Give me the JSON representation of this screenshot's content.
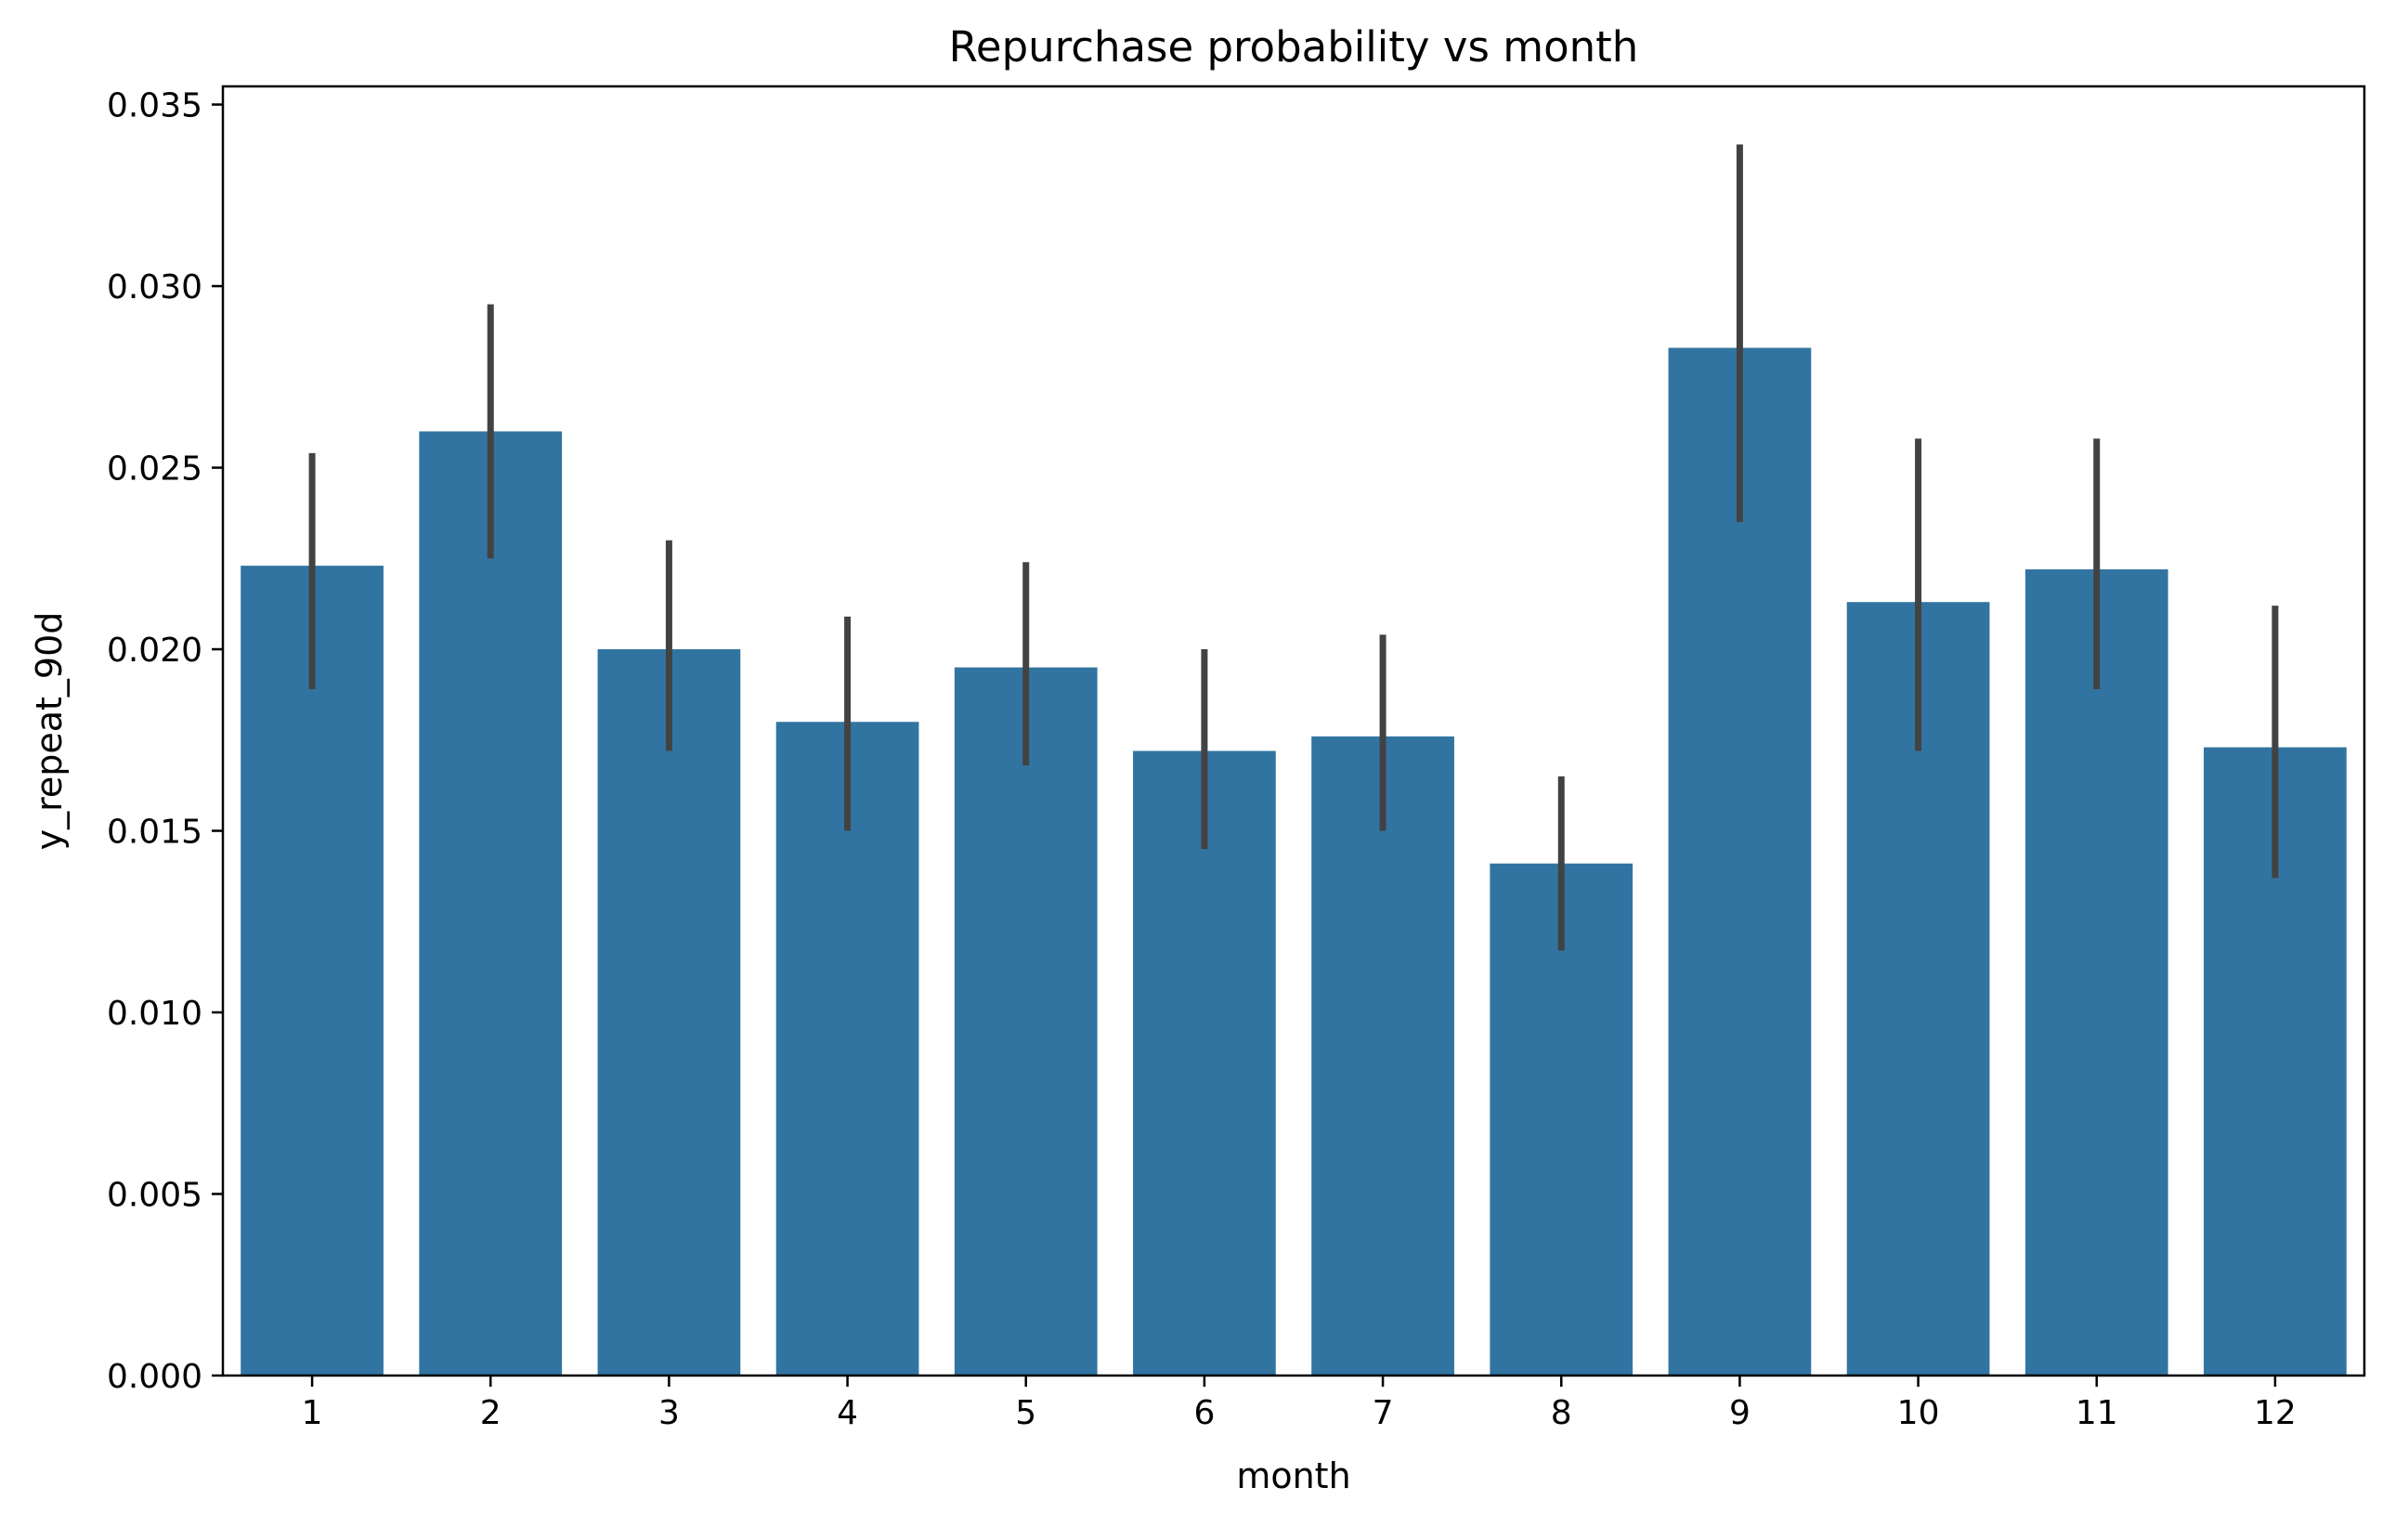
{
  "chart_data": {
    "type": "bar",
    "title": "Repurchase probability vs month",
    "xlabel": "month",
    "ylabel": "y_repeat_90d",
    "categories": [
      "1",
      "2",
      "3",
      "4",
      "5",
      "6",
      "7",
      "8",
      "9",
      "10",
      "11",
      "12"
    ],
    "values": [
      0.0223,
      0.026,
      0.02,
      0.018,
      0.0195,
      0.0172,
      0.0176,
      0.0141,
      0.0283,
      0.0213,
      0.0222,
      0.0173
    ],
    "error_low": [
      0.0189,
      0.0225,
      0.0172,
      0.015,
      0.0168,
      0.0145,
      0.015,
      0.0117,
      0.0235,
      0.0172,
      0.0189,
      0.0137
    ],
    "error_high": [
      0.0254,
      0.0295,
      0.023,
      0.0209,
      0.0224,
      0.02,
      0.0204,
      0.0165,
      0.0339,
      0.0258,
      0.0258,
      0.0212
    ],
    "ylim": [
      0,
      0.0355
    ],
    "yticks": [
      "0.000",
      "0.005",
      "0.010",
      "0.015",
      "0.020",
      "0.025",
      "0.030",
      "0.035"
    ],
    "grid": false,
    "colors": {
      "bar": "#3274a1",
      "error_bar": "#424242",
      "axis": "#000000"
    }
  }
}
